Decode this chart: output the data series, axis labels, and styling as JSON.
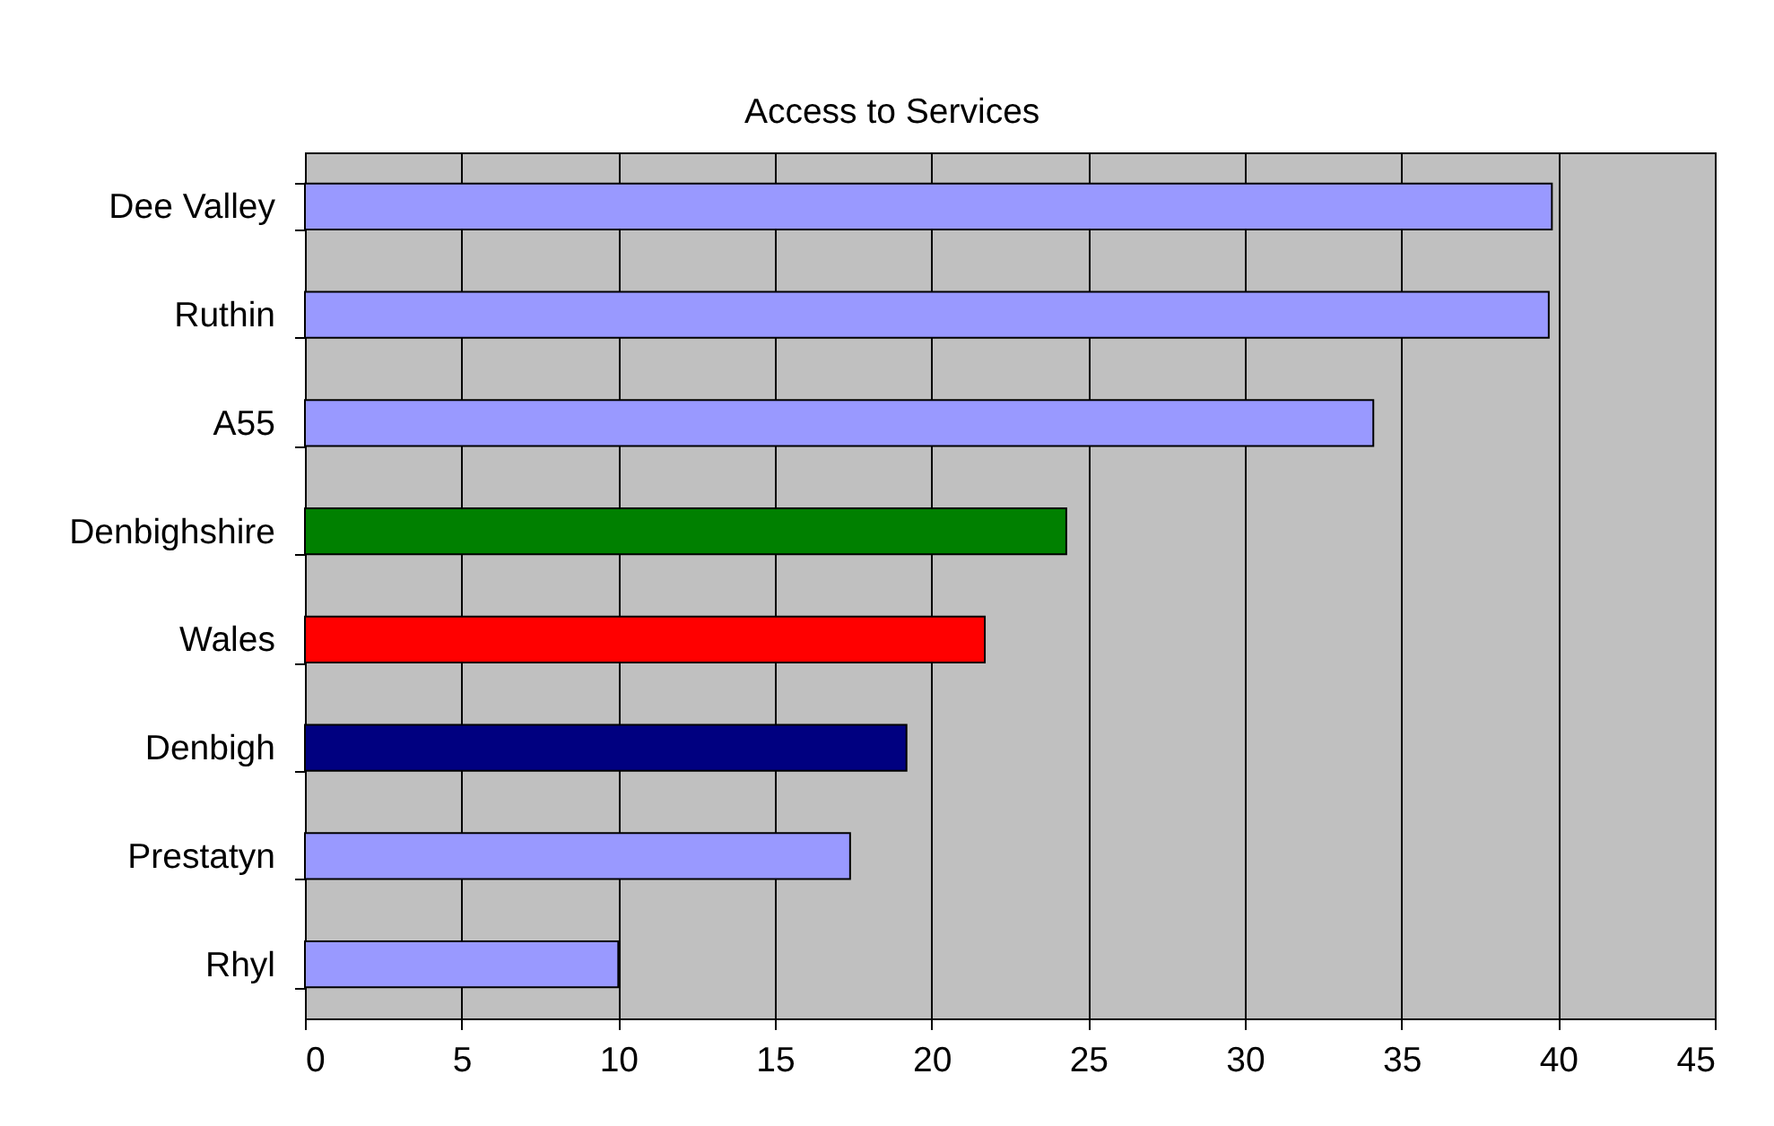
{
  "chart_data": {
    "type": "bar",
    "orientation": "horizontal",
    "title": "Access to Services",
    "categories": [
      "Dee Valley",
      "Ruthin",
      "A55",
      "Denbighshire",
      "Wales",
      "Denbigh",
      "Prestatyn",
      "Rhyl"
    ],
    "values": [
      39.8,
      39.7,
      34.1,
      24.3,
      21.7,
      19.2,
      17.4,
      10.0
    ],
    "colors": [
      "#9999ff",
      "#9999ff",
      "#9999ff",
      "#008000",
      "#ff0000",
      "#000080",
      "#9999ff",
      "#9999ff"
    ],
    "xlim": [
      0,
      45
    ],
    "xticks": [
      0,
      5,
      10,
      15,
      20,
      25,
      30,
      35,
      40,
      45
    ],
    "grid": "x"
  }
}
